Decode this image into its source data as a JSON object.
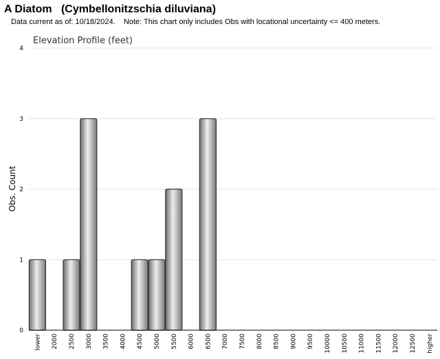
{
  "header": {
    "title": "A Diatom   (Cymbellonitzschia diluviana)",
    "subtitle": "Data current as of: 10/18/2024.    Note: This chart only includes Obs with locational uncertainty <= 400 meters."
  },
  "chart_data": {
    "type": "bar",
    "title": "Elevation Profile (feet)",
    "xlabel": "",
    "ylabel": "Obs. Count",
    "ylim": [
      0,
      4
    ],
    "yticks": [
      "0",
      "1",
      "2",
      "3",
      "4"
    ],
    "grid": true,
    "categories": [
      "lower",
      "2000",
      "2500",
      "3000",
      "3500",
      "4000",
      "4500",
      "5000",
      "5500",
      "6000",
      "6500",
      "7000",
      "7500",
      "8000",
      "8500",
      "9000",
      "9500",
      "10000",
      "10500",
      "11000",
      "11500",
      "12000",
      "12500",
      "higher"
    ],
    "values": [
      1,
      0,
      1,
      3,
      0,
      0,
      1,
      1,
      2,
      0,
      3,
      0,
      0,
      0,
      0,
      0,
      0,
      0,
      0,
      0,
      0,
      0,
      0,
      0
    ],
    "bar_color": "#a8a8a8"
  }
}
